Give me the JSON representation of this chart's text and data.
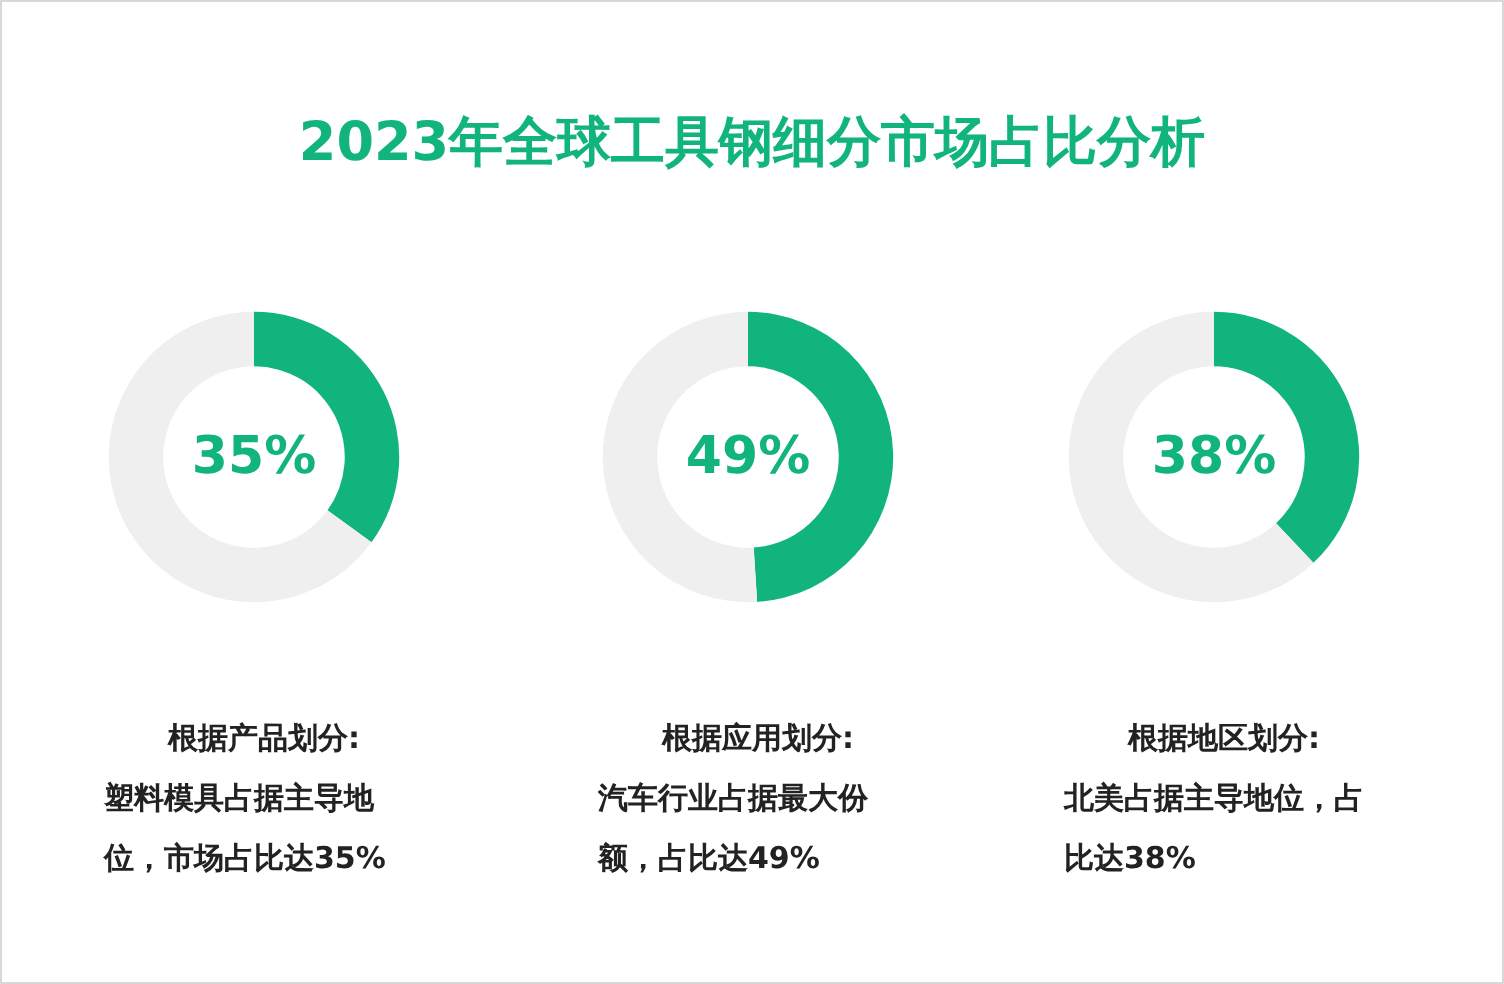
{
  "chart_data": [
    {
      "type": "donut",
      "title": "2023年全球工具钢细分市场占比分析",
      "categories": [
        null,
        null
      ],
      "values": [
        35,
        65
      ],
      "colors": [
        "#12b47e",
        "#efefef"
      ],
      "annotations": [
        "35%",
        "根据产品划分:",
        "塑料模具占据主导地位，市场占比达35%"
      ]
    },
    {
      "type": "donut",
      "categories": [
        null,
        null
      ],
      "values": [
        49,
        51
      ],
      "colors": [
        "#12b47e",
        "#efefef"
      ],
      "annotations": [
        "49%",
        "根据应用划分:",
        "汽车行业占据最大份额，占比达49%"
      ]
    },
    {
      "type": "donut",
      "categories": [
        null,
        null
      ],
      "values": [
        38,
        62
      ],
      "colors": [
        "#12b47e",
        "#efefef"
      ],
      "annotations": [
        "38%",
        "根据地区划分:",
        "北美占据主导地位，占比达38%"
      ]
    }
  ]
}
